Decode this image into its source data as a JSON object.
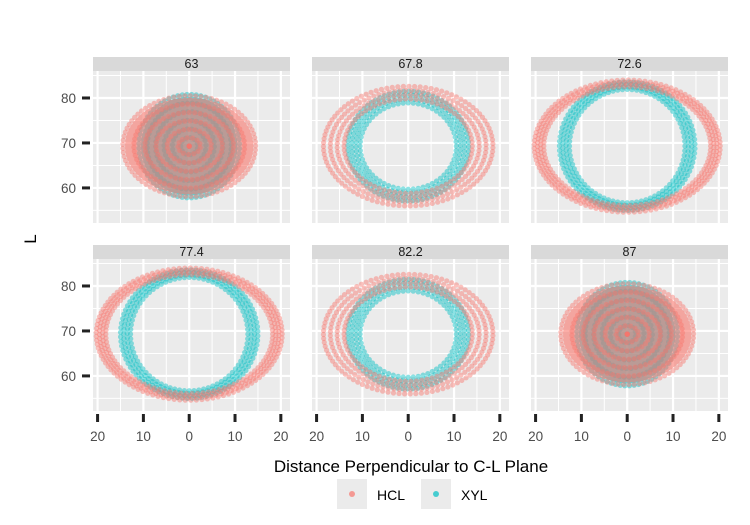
{
  "chart_data": {
    "type": "scatter",
    "xlabel": "Distance Perpendicular to C-L Plane",
    "ylabel": "L",
    "xlim": [
      -21,
      22
    ],
    "ylim": [
      52.2,
      86
    ],
    "x_ticks": [
      20,
      10,
      0,
      10,
      20
    ],
    "x_tick_values": [
      -20,
      -10,
      0,
      10,
      20
    ],
    "y_ticks": [
      60,
      70,
      80
    ],
    "legend": {
      "position": "bottom",
      "entries": [
        "HCL",
        "XYL"
      ]
    },
    "colors": {
      "HCL": "#F8766D",
      "XYL": "#00BFC4"
    },
    "center_L": 69.3,
    "facets": [
      {
        "label": "63",
        "HCL": {
          "outer": [
            14.5,
            11.2
          ],
          "inner": [
            0,
            0
          ]
        },
        "XYL": {
          "outer": [
            11,
            11.5
          ],
          "inner": [
            0,
            0
          ]
        }
      },
      {
        "label": "67.8",
        "HCL": {
          "outer": [
            18.5,
            13.3
          ],
          "inner": [
            14,
            10.5
          ]
        },
        "XYL": {
          "outer": [
            13.2,
            12.2
          ],
          "inner": [
            10.5,
            9.6
          ]
        }
      },
      {
        "label": "72.6",
        "HCL": {
          "outer": [
            20.3,
            14.7
          ],
          "inner": [
            18.2,
            13.2
          ]
        },
        "XYL": {
          "outer": [
            14.8,
            14.3
          ],
          "inner": [
            12.6,
            12.6
          ]
        }
      },
      {
        "label": "77.4",
        "HCL": {
          "outer": [
            20.3,
            14.7
          ],
          "inner": [
            18.2,
            13.2
          ]
        },
        "XYL": {
          "outer": [
            15,
            14.3
          ],
          "inner": [
            12.8,
            12.6
          ]
        }
      },
      {
        "label": "82.2",
        "HCL": {
          "outer": [
            18.5,
            13.3
          ],
          "inner": [
            14,
            10.5
          ]
        },
        "XYL": {
          "outer": [
            13.2,
            12.2
          ],
          "inner": [
            10.5,
            9.6
          ]
        }
      },
      {
        "label": "87",
        "HCL": {
          "outer": [
            14.5,
            11.2
          ],
          "inner": [
            0,
            0
          ]
        },
        "XYL": {
          "outer": [
            11,
            11.5
          ],
          "inner": [
            0,
            0
          ]
        }
      }
    ]
  }
}
